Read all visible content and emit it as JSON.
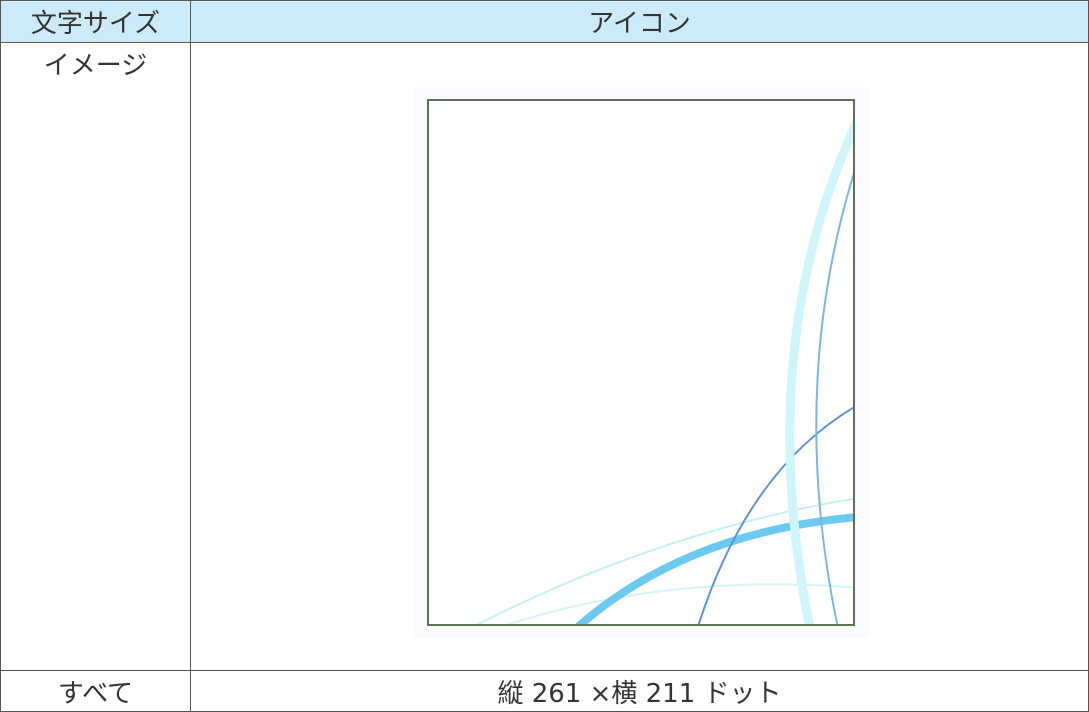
{
  "table": {
    "header": [
      "文字サイズ",
      "アイコン"
    ],
    "rows": [
      [
        "イメージ"
      ],
      [
        "すべて",
        "縦 261 ×横 211 ドット"
      ]
    ]
  }
}
